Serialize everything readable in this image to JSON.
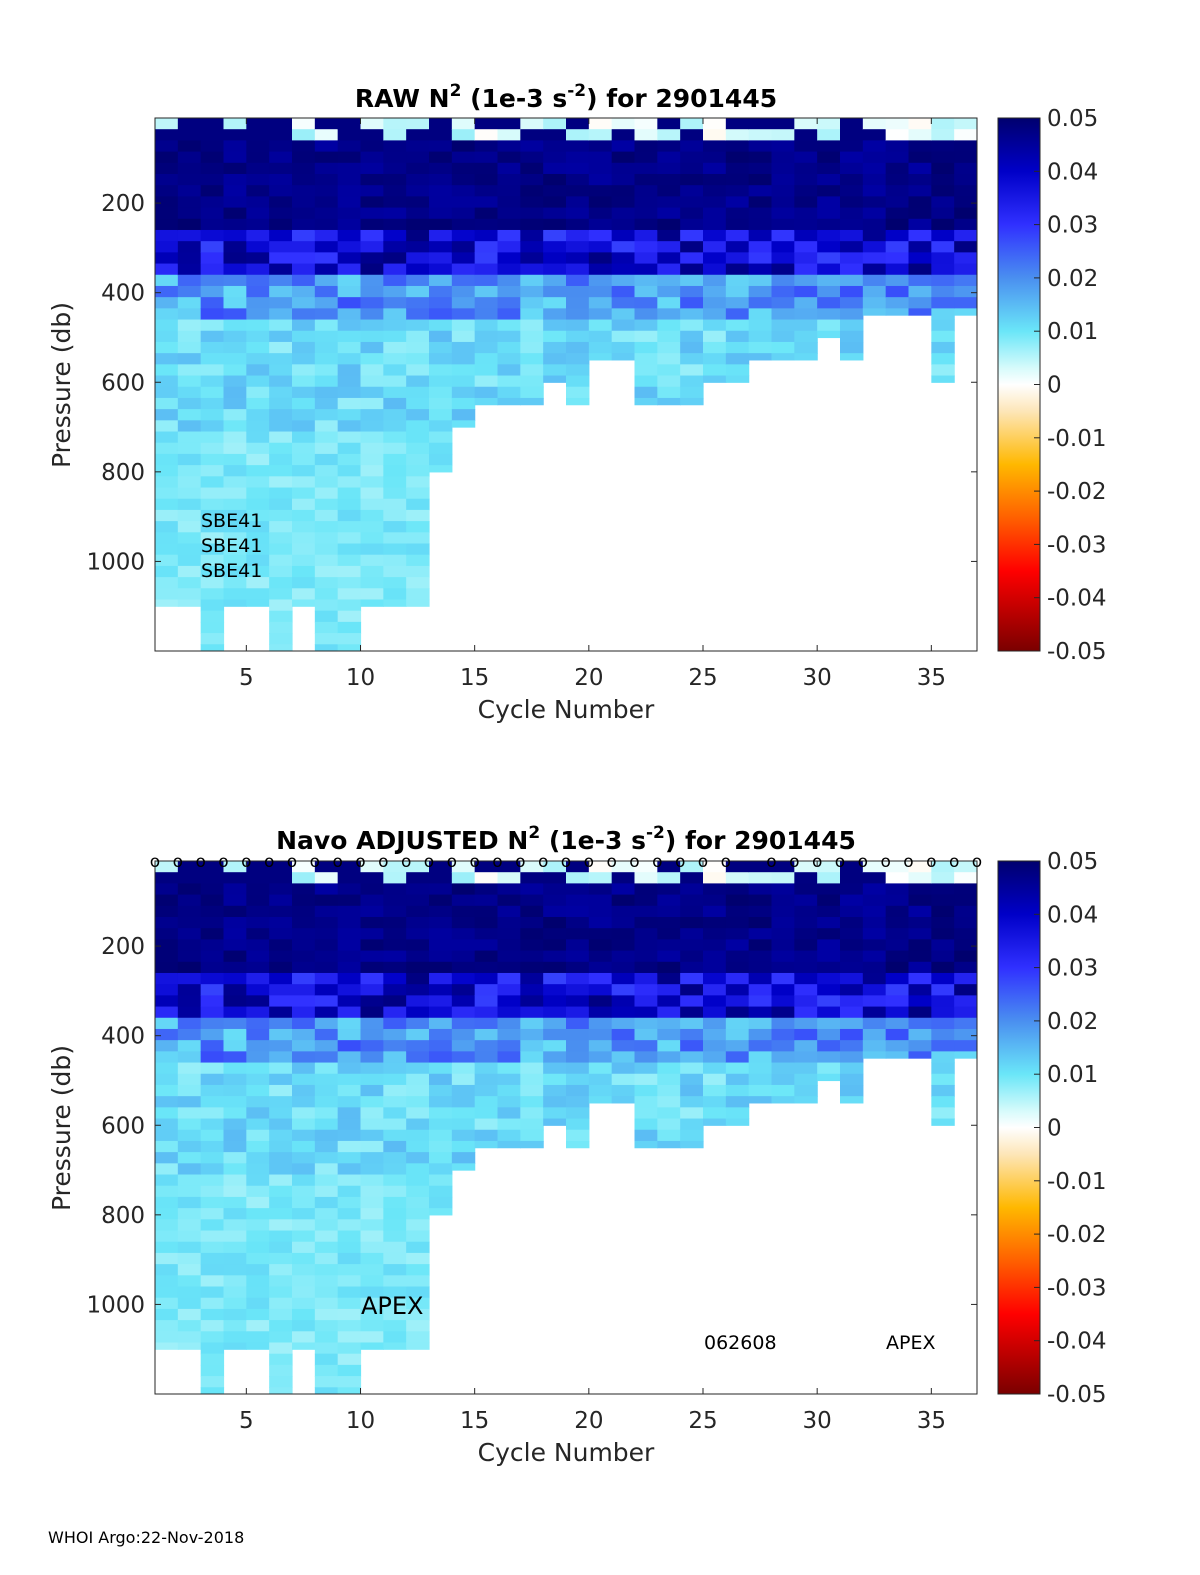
{
  "footer": "WHOI Argo:22-Nov-2018",
  "chart_data": [
    {
      "type": "heatmap",
      "title": "RAW N² (1e-3 s⁻²) for 2901445",
      "title_parts": {
        "prefix": "RAW N",
        "sup1": "2",
        "mid": " (1e-3 s",
        "sup2": "-2",
        "suffix": ") for 2901445"
      },
      "xlabel": "Cycle Number",
      "ylabel": "Pressure (db)",
      "xlim": [
        1,
        37
      ],
      "ylim": [
        1200,
        10
      ],
      "xticks": [
        5,
        10,
        15,
        20,
        25,
        30,
        35
      ],
      "yticks": [
        200,
        400,
        600,
        800,
        1000
      ],
      "colorbar": {
        "min": -0.05,
        "max": 0.05,
        "ticks": [
          "0.05",
          "0.04",
          "0.03",
          "0.02",
          "0.01",
          "0",
          "-0.01",
          "-0.02",
          "-0.03",
          "-0.04",
          "-0.05"
        ]
      },
      "max_pressure_by_cycle": [
        1100,
        1100,
        1200,
        1100,
        1100,
        1200,
        1100,
        1200,
        1200,
        1100,
        1100,
        1100,
        800,
        700,
        650,
        650,
        650,
        600,
        650,
        550,
        550,
        650,
        650,
        650,
        600,
        600,
        550,
        550,
        550,
        500,
        550,
        450,
        450,
        450,
        600,
        450
      ],
      "annotations": [
        "SBE41",
        "SBE41",
        "SBE41"
      ],
      "grid": false
    },
    {
      "type": "heatmap",
      "title": "Navo ADJUSTED N² (1e-3 s⁻²) for 2901445",
      "title_parts": {
        "prefix": "Navo  ADJUSTED N",
        "sup1": "2",
        "mid": " (1e-3 s",
        "sup2": "-2",
        "suffix": ") for 2901445"
      },
      "xlabel": "Cycle Number",
      "ylabel": "Pressure (db)",
      "xlim": [
        1,
        37
      ],
      "ylim": [
        1200,
        10
      ],
      "xticks": [
        5,
        10,
        15,
        20,
        25,
        30,
        35
      ],
      "yticks": [
        200,
        400,
        600,
        800,
        1000
      ],
      "colorbar": {
        "min": -0.05,
        "max": 0.05,
        "ticks": [
          "0.05",
          "0.04",
          "0.03",
          "0.02",
          "0.01",
          "0",
          "-0.01",
          "-0.02",
          "-0.03",
          "-0.04",
          "-0.05"
        ]
      },
      "max_pressure_by_cycle": [
        1100,
        1100,
        1200,
        1100,
        1100,
        1200,
        1100,
        1200,
        1200,
        1100,
        1100,
        1100,
        800,
        700,
        650,
        650,
        650,
        600,
        650,
        550,
        550,
        650,
        650,
        650,
        600,
        600,
        550,
        550,
        550,
        500,
        550,
        450,
        450,
        450,
        600,
        450
      ],
      "surface_markers": [
        1,
        2,
        3,
        4,
        5,
        6,
        7,
        8,
        9,
        10,
        11,
        12,
        13,
        14,
        15,
        16,
        17,
        18,
        19,
        20,
        21,
        22,
        23,
        24,
        25,
        26,
        28,
        29,
        30,
        31,
        32,
        33,
        34,
        35,
        36,
        37
      ],
      "marker_glyph": "o",
      "annotations": [
        "APEX",
        "062608",
        "APEX"
      ],
      "grid": false
    }
  ]
}
